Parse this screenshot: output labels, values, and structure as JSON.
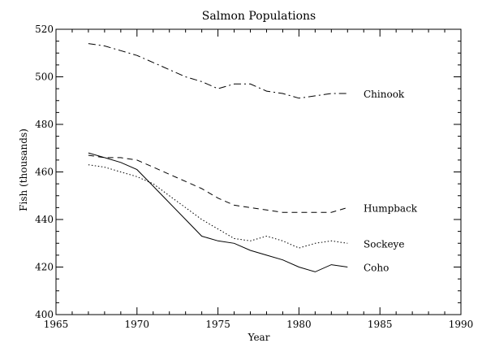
{
  "chart_data": {
    "type": "line",
    "title": "Salmon Populations",
    "xlabel": "Year",
    "ylabel": "Fish (thousands)",
    "xlim": [
      1965,
      1990
    ],
    "ylim": [
      400,
      520
    ],
    "xticks": [
      1965,
      1970,
      1975,
      1980,
      1985,
      1990
    ],
    "yticks": [
      400,
      420,
      440,
      460,
      480,
      500,
      520
    ],
    "x": [
      1967,
      1968,
      1969,
      1970,
      1971,
      1972,
      1973,
      1974,
      1975,
      1976,
      1977,
      1978,
      1979,
      1980,
      1981,
      1982,
      1983
    ],
    "series": [
      {
        "name": "Coho",
        "style": "solid",
        "values": [
          468,
          466,
          464,
          461,
          454,
          447,
          440,
          433,
          431,
          430,
          427,
          425,
          423,
          420,
          418,
          421,
          420
        ]
      },
      {
        "name": "Sockeye",
        "style": "dotted",
        "values": [
          463,
          462,
          460,
          458,
          455,
          450,
          445,
          440,
          436,
          432,
          431,
          433,
          431,
          428,
          430,
          431,
          430
        ]
      },
      {
        "name": "Humpback",
        "style": "dashed",
        "values": [
          467,
          466,
          466,
          465,
          462,
          459,
          456,
          453,
          449,
          446,
          445,
          444,
          443,
          443,
          443,
          443,
          445
        ]
      },
      {
        "name": "Chinook",
        "style": "dashdot",
        "values": [
          514,
          513,
          511,
          509,
          506,
          503,
          500,
          498,
          495,
          497,
          497,
          494,
          493,
          491,
          492,
          493,
          493
        ]
      }
    ]
  }
}
